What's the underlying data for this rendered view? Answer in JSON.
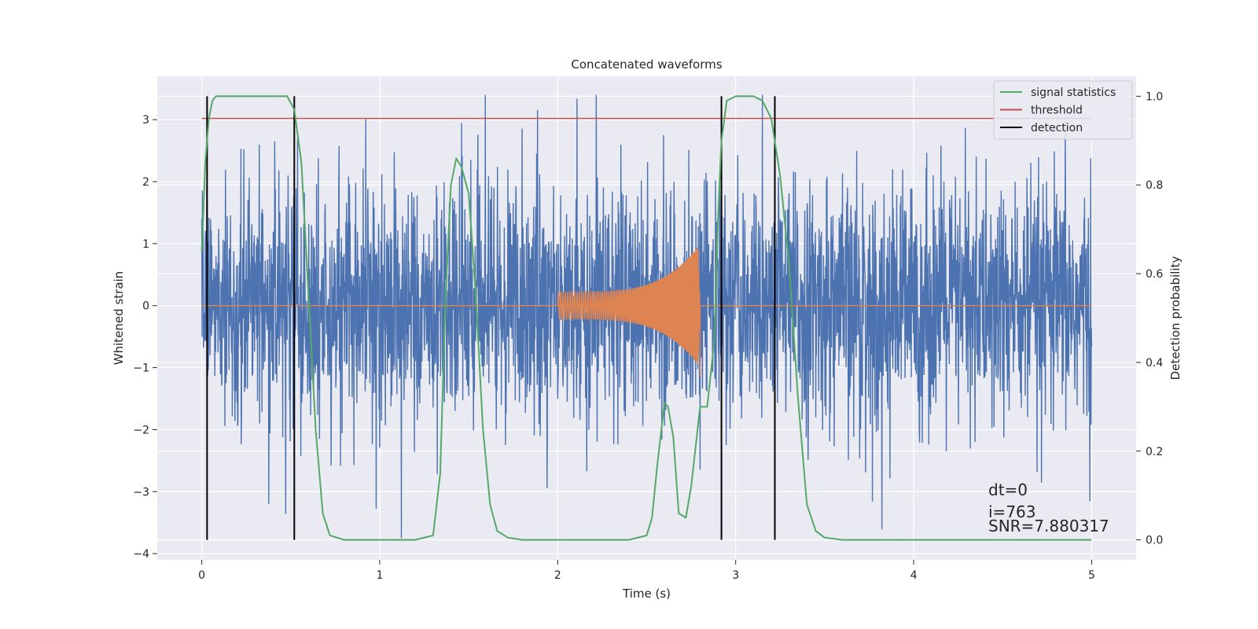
{
  "chart_data": {
    "type": "line",
    "title": "Concatenated waveforms",
    "xlabel": "Time (s)",
    "ylabel": "Whitened strain",
    "y2label": "Detection probability",
    "xlim": [
      -0.25,
      5.25
    ],
    "ylim": [
      -4.1,
      3.7
    ],
    "y2lim": [
      -0.045,
      1.045
    ],
    "xticks": [
      0,
      1,
      2,
      3,
      4,
      5
    ],
    "xtick_labels": [
      "0",
      "1",
      "2",
      "3",
      "4",
      "5"
    ],
    "yticks": [
      -4,
      -3,
      -2,
      -1,
      0,
      1,
      2,
      3
    ],
    "ytick_labels": [
      "−4",
      "−3",
      "−2",
      "−1",
      "0",
      "1",
      "2",
      "3"
    ],
    "y2ticks": [
      0.0,
      0.2,
      0.4,
      0.6,
      0.8,
      1.0
    ],
    "y2tick_labels": [
      "0.0",
      "0.2",
      "0.4",
      "0.6",
      "0.8",
      "1.0"
    ],
    "grid": true,
    "legend_position": "top-right",
    "legend": [
      {
        "label": "signal statistics",
        "color": "#55a868"
      },
      {
        "label": "threshold",
        "color": "#c44e52"
      },
      {
        "label": "detection",
        "color": "#000000"
      }
    ],
    "annotations": [
      "dt=0",
      "i=763",
      "SNR=7.880317"
    ],
    "series": [
      {
        "role": "whitened-strain",
        "axis": "left",
        "color": "#4c72b0",
        "x_range": [
          0,
          5
        ],
        "typical_amplitude": 1.8,
        "peak_amplitude": 3.4
      },
      {
        "role": "injected-waveform",
        "axis": "left",
        "color": "#dd8452",
        "x_range": [
          0,
          5
        ],
        "chirp_start": 2.0,
        "chirp_end": 2.8,
        "amplitude_start": 0.22,
        "amplitude_end": 1.0
      },
      {
        "name": "signal statistics",
        "axis": "right",
        "color": "#55a868",
        "x": [
          0,
          0.02,
          0.04,
          0.06,
          0.08,
          0.12,
          0.2,
          0.3,
          0.4,
          0.48,
          0.52,
          0.56,
          0.6,
          0.64,
          0.68,
          0.72,
          0.8,
          1.0,
          1.2,
          1.3,
          1.34,
          1.37,
          1.4,
          1.43,
          1.46,
          1.5,
          1.54,
          1.58,
          1.62,
          1.66,
          1.72,
          1.8,
          2.0,
          2.2,
          2.4,
          2.5,
          2.53,
          2.56,
          2.6,
          2.62,
          2.65,
          2.68,
          2.72,
          2.75,
          2.8,
          2.84,
          2.88,
          2.9,
          2.92,
          2.95,
          3.0,
          3.1,
          3.15,
          3.2,
          3.25,
          3.3,
          3.35,
          3.4,
          3.45,
          3.5,
          3.6,
          4.0,
          4.5,
          5.0
        ],
        "y": [
          0.65,
          0.85,
          0.95,
          0.99,
          1.0,
          1.0,
          1.0,
          1.0,
          1.0,
          1.0,
          0.97,
          0.85,
          0.55,
          0.25,
          0.06,
          0.01,
          0.0,
          0.0,
          0.0,
          0.01,
          0.15,
          0.55,
          0.8,
          0.86,
          0.84,
          0.78,
          0.55,
          0.25,
          0.08,
          0.02,
          0.005,
          0.0,
          0.0,
          0.0,
          0.0,
          0.01,
          0.05,
          0.17,
          0.31,
          0.3,
          0.23,
          0.06,
          0.05,
          0.12,
          0.3,
          0.3,
          0.45,
          0.72,
          0.9,
          0.99,
          1.0,
          1.0,
          0.99,
          0.95,
          0.82,
          0.62,
          0.32,
          0.08,
          0.02,
          0.005,
          0.0,
          0.0,
          0.0,
          0.0
        ]
      },
      {
        "name": "threshold",
        "axis": "right",
        "color": "#c44e52",
        "x": [
          0,
          5
        ],
        "y": [
          0.95,
          0.95
        ]
      }
    ],
    "detections": [
      0.03,
      0.52,
      2.92,
      3.22
    ]
  }
}
